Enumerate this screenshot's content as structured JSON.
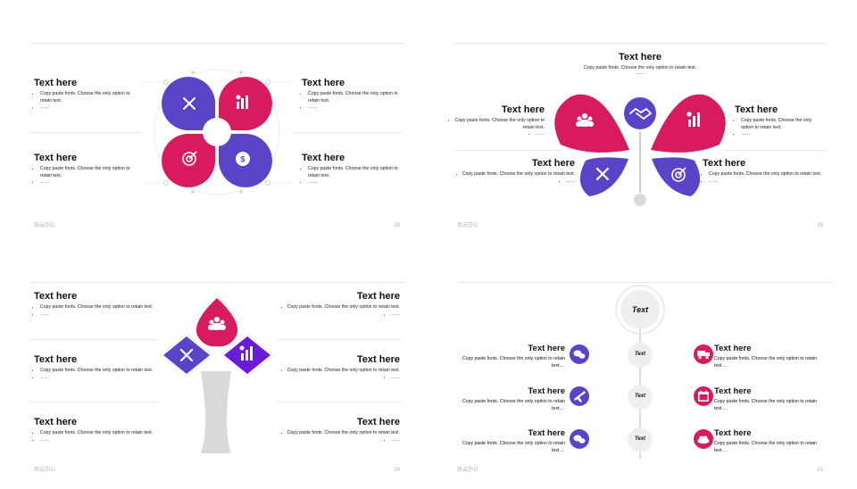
{
  "colors": {
    "purple": "#5b43c8",
    "magenta": "#d81b60",
    "gray": "#d9d9d9"
  },
  "slides": [
    {
      "footer_left": "风云办公",
      "page": "28",
      "blocks": [
        {
          "title": "Text here",
          "body": "Copy paste fonts. Choose the only option to retain text.",
          "more": "……"
        },
        {
          "title": "Text here",
          "body": "Copy paste fonts. Choose the only option to retain text.",
          "more": "……"
        },
        {
          "title": "Text here",
          "body": "Copy paste fonts. Choose the only option to retain text.",
          "more": "……"
        },
        {
          "title": "Text here",
          "body": "Copy paste fonts. Choose the only option to retain text.",
          "more": "……"
        }
      ],
      "icons": [
        "tools-icon",
        "chart-growth-icon",
        "target-icon",
        "dollar-gear-icon"
      ]
    },
    {
      "footer_left": "风云办公",
      "page": "29",
      "title": "Text here",
      "subtitle": "Copy paste fonts. Choose the only option to retain text.",
      "subtitle_more": "……",
      "blocks": [
        {
          "title": "Text here",
          "body": "Copy paste fonts. Choose the only option to retain text.",
          "more": "……"
        },
        {
          "title": "Text here",
          "body": "Copy paste fonts. Choose the only option to retain text.",
          "more": "……"
        },
        {
          "title": "Text here",
          "body": "Copy paste fonts. Choose the only option to retain text.",
          "more": "……"
        },
        {
          "title": "Text here",
          "body": "Copy paste fonts. Choose the only option to retain text.",
          "more": "……"
        }
      ],
      "icons": [
        "team-icon",
        "handshake-icon",
        "chart-growth-icon",
        "tools-icon",
        "target-icon"
      ]
    },
    {
      "footer_left": "风云办公",
      "page": "30",
      "blocks": [
        {
          "title": "Text here",
          "body": "Copy paste fonts. Choose the only option to retain text.",
          "more": "……"
        },
        {
          "title": "Text here",
          "body": "Copy paste fonts. Choose the only option to retain text.",
          "more": "……"
        },
        {
          "title": "Text here",
          "body": "Copy paste fonts. Choose the only option to retain text.",
          "more": "……"
        },
        {
          "title": "Text here",
          "body": "Copy paste fonts. Choose the only option to retain text.",
          "more": "……"
        },
        {
          "title": "Text here",
          "body": "Copy paste fonts. Choose the only option to retain text.",
          "more": "……"
        },
        {
          "title": "Text here",
          "body": "Copy paste fonts. Choose the only option to retain text.",
          "more": "……"
        }
      ],
      "icons": [
        "team-icon",
        "tools-icon",
        "chart-growth-icon"
      ]
    },
    {
      "footer_left": "风云办公",
      "page": "31",
      "center_label": "Text",
      "nodes": [
        "Text",
        "Text",
        "Text"
      ],
      "blocks": [
        {
          "title": "Text here",
          "body": "Copy paste fonts. Choose the only option to retain text.…"
        },
        {
          "title": "Text here",
          "body": "Copy paste fonts. Choose the only option to retain text.…"
        },
        {
          "title": "Text here",
          "body": "Copy paste fonts. Choose the only option to retain text.…"
        },
        {
          "title": "Text here",
          "body": "Copy paste fonts. Choose the only option to retain text.…"
        },
        {
          "title": "Text here",
          "body": "Copy paste fonts. Choose the only option to retain text.…"
        },
        {
          "title": "Text here",
          "body": "Copy paste fonts. Choose the only option to retain text.…"
        }
      ],
      "icons": [
        "chat-icon",
        "plane-icon",
        "chat-icon",
        "truck-icon",
        "calendar-icon",
        "cloud-icon"
      ]
    }
  ]
}
